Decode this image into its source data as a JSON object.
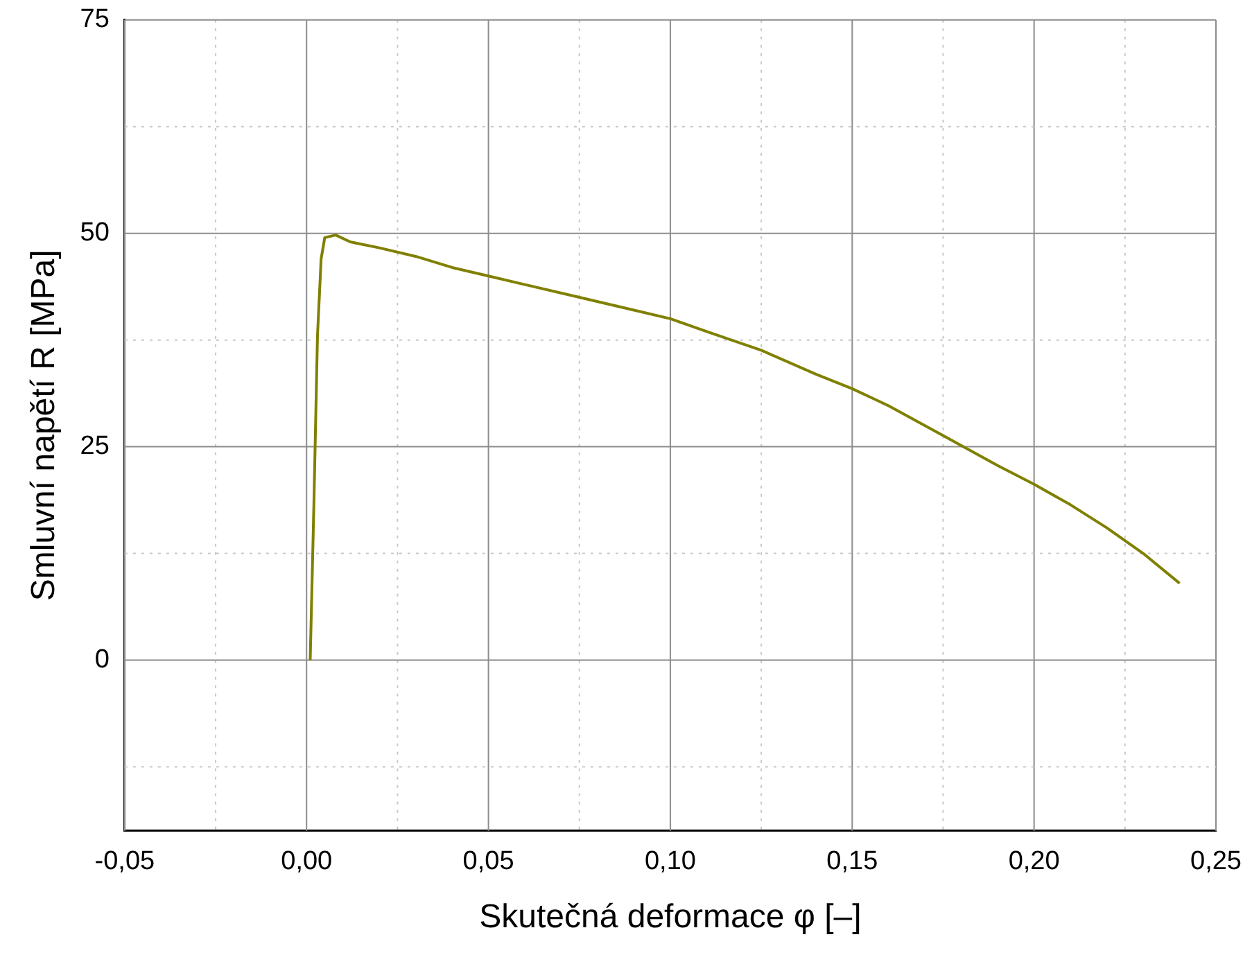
{
  "chart_data": {
    "type": "line",
    "xlabel": "Skutečná deformace φ [–]",
    "ylabel": "Smluvní napětí R [MPa]",
    "x": [
      0.001,
      0.002,
      0.003,
      0.004,
      0.005,
      0.008,
      0.012,
      0.02,
      0.03,
      0.04,
      0.05,
      0.06,
      0.075,
      0.09,
      0.1,
      0.11,
      0.125,
      0.14,
      0.15,
      0.16,
      0.175,
      0.19,
      0.2,
      0.21,
      0.22,
      0.23,
      0.24
    ],
    "series": [
      {
        "color": "#808000",
        "values": [
          0,
          18,
          38,
          47,
          49.5,
          49.8,
          49,
          48.3,
          47.3,
          46,
          45,
          44,
          42.5,
          41,
          40,
          38.5,
          36.3,
          33.5,
          31.8,
          29.8,
          26.3,
          22.8,
          20.6,
          18.2,
          15.5,
          12.5,
          9
        ]
      }
    ],
    "xlim": [
      -0.05,
      0.25
    ],
    "ylim": [
      -20,
      75
    ],
    "xticks": [
      {
        "value": -0.05,
        "label": "-0,05"
      },
      {
        "value": -0.025,
        "label": null
      },
      {
        "value": 0,
        "label": "0,00"
      },
      {
        "value": 0.025,
        "label": null
      },
      {
        "value": 0.05,
        "label": "0,05"
      },
      {
        "value": 0.075,
        "label": null
      },
      {
        "value": 0.1,
        "label": "0,10"
      },
      {
        "value": 0.125,
        "label": null
      },
      {
        "value": 0.15,
        "label": "0,15"
      },
      {
        "value": 0.175,
        "label": null
      },
      {
        "value": 0.2,
        "label": "0,20"
      },
      {
        "value": 0.225,
        "label": null
      },
      {
        "value": 0.25,
        "label": "0,25"
      }
    ],
    "yticks": [
      {
        "value": -12.5,
        "label": null
      },
      0,
      {
        "value": 12.5,
        "label": null
      },
      25,
      {
        "value": 37.5,
        "label": null
      },
      50,
      {
        "value": 62.5,
        "label": null
      },
      75
    ],
    "grid": true,
    "legend": false,
    "marker": "none",
    "line_style": "solid"
  }
}
